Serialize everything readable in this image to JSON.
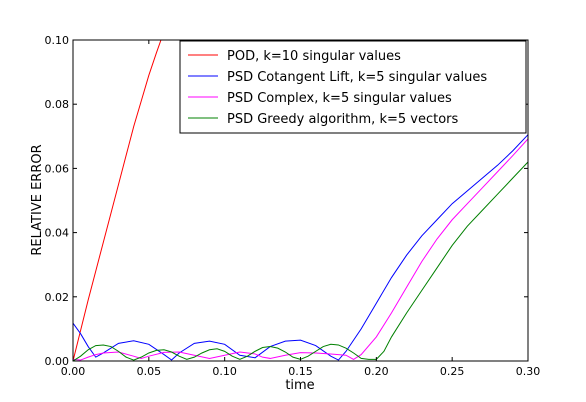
{
  "chart_data": {
    "type": "line",
    "xlabel": "time",
    "ylabel": "RELATIVE ERROR",
    "xlim": [
      0.0,
      0.3
    ],
    "ylim": [
      0.0,
      0.1
    ],
    "x_ticks": [
      0.0,
      0.05,
      0.1,
      0.15,
      0.2,
      0.25,
      0.3
    ],
    "x_tick_labels": [
      "0.00",
      "0.05",
      "0.10",
      "0.15",
      "0.20",
      "0.25",
      "0.30"
    ],
    "y_ticks": [
      0.0,
      0.02,
      0.04,
      0.06,
      0.08,
      0.1
    ],
    "y_tick_labels": [
      "0.00",
      "0.02",
      "0.04",
      "0.06",
      "0.08",
      "0.10"
    ],
    "legend_position": "top-right",
    "grid": false,
    "series": [
      {
        "name": "POD, k=10 singular values",
        "color": "#ff0000",
        "x": [
          0.0,
          0.005,
          0.01,
          0.015,
          0.02,
          0.025,
          0.03,
          0.035,
          0.04,
          0.045,
          0.05,
          0.055,
          0.058
        ],
        "y": [
          0.0,
          0.0095,
          0.019,
          0.028,
          0.037,
          0.046,
          0.055,
          0.064,
          0.073,
          0.081,
          0.089,
          0.096,
          0.1
        ]
      },
      {
        "name": "PSD Cotangent Lift, k=5 singular values",
        "color": "#0000ff",
        "x": [
          0.0,
          0.005,
          0.01,
          0.015,
          0.02,
          0.03,
          0.04,
          0.05,
          0.06,
          0.065,
          0.07,
          0.08,
          0.09,
          0.1,
          0.11,
          0.12,
          0.13,
          0.14,
          0.15,
          0.16,
          0.17,
          0.175,
          0.18,
          0.19,
          0.2,
          0.21,
          0.22,
          0.23,
          0.24,
          0.25,
          0.26,
          0.27,
          0.28,
          0.29,
          0.3
        ],
        "y": [
          0.0118,
          0.0085,
          0.0045,
          0.0012,
          0.0025,
          0.0055,
          0.0063,
          0.0052,
          0.002,
          0.0003,
          0.0025,
          0.0055,
          0.0062,
          0.0052,
          0.0018,
          0.001,
          0.0045,
          0.0062,
          0.0065,
          0.0048,
          0.0015,
          0.0003,
          0.003,
          0.01,
          0.018,
          0.026,
          0.033,
          0.039,
          0.044,
          0.049,
          0.053,
          0.057,
          0.061,
          0.0655,
          0.0705
        ]
      },
      {
        "name": "PSD Complex, k=5 singular values",
        "color": "#ff00ff",
        "x": [
          0.0,
          0.005,
          0.01,
          0.015,
          0.02,
          0.03,
          0.04,
          0.045,
          0.05,
          0.06,
          0.07,
          0.08,
          0.09,
          0.1,
          0.11,
          0.12,
          0.125,
          0.13,
          0.14,
          0.15,
          0.16,
          0.17,
          0.18,
          0.185,
          0.19,
          0.2,
          0.21,
          0.22,
          0.23,
          0.24,
          0.25,
          0.26,
          0.27,
          0.28,
          0.29,
          0.3
        ],
        "y": [
          0.0005,
          0.0003,
          0.0012,
          0.002,
          0.0025,
          0.0028,
          0.0015,
          0.0008,
          0.0015,
          0.0027,
          0.0028,
          0.0018,
          0.0008,
          0.0018,
          0.0028,
          0.0022,
          0.0012,
          0.0008,
          0.0018,
          0.0026,
          0.0025,
          0.0022,
          0.0018,
          0.0005,
          0.002,
          0.0075,
          0.015,
          0.023,
          0.031,
          0.038,
          0.044,
          0.049,
          0.054,
          0.059,
          0.064,
          0.0692
        ]
      },
      {
        "name": "PSD Greedy algorithm, k=5 vectors",
        "color": "#008000",
        "x": [
          0.0,
          0.005,
          0.01,
          0.015,
          0.02,
          0.025,
          0.03,
          0.035,
          0.04,
          0.045,
          0.05,
          0.055,
          0.06,
          0.065,
          0.07,
          0.075,
          0.08,
          0.085,
          0.09,
          0.095,
          0.1,
          0.105,
          0.11,
          0.115,
          0.12,
          0.125,
          0.13,
          0.135,
          0.14,
          0.145,
          0.15,
          0.155,
          0.16,
          0.165,
          0.17,
          0.175,
          0.18,
          0.185,
          0.19,
          0.195,
          0.2,
          0.205,
          0.21,
          0.22,
          0.23,
          0.24,
          0.25,
          0.26,
          0.27,
          0.28,
          0.29,
          0.3
        ],
        "y": [
          0.0,
          0.0015,
          0.0035,
          0.0048,
          0.005,
          0.0045,
          0.003,
          0.0012,
          0.0003,
          0.0012,
          0.0025,
          0.0033,
          0.0035,
          0.0028,
          0.0015,
          0.0005,
          0.0012,
          0.0025,
          0.0035,
          0.0038,
          0.003,
          0.0015,
          0.0005,
          0.0015,
          0.003,
          0.0042,
          0.0045,
          0.004,
          0.0028,
          0.0012,
          0.0005,
          0.0015,
          0.003,
          0.0045,
          0.0052,
          0.005,
          0.004,
          0.0025,
          0.0008,
          0.0005,
          0.0005,
          0.003,
          0.0075,
          0.015,
          0.022,
          0.029,
          0.036,
          0.042,
          0.047,
          0.052,
          0.057,
          0.062
        ]
      }
    ]
  }
}
